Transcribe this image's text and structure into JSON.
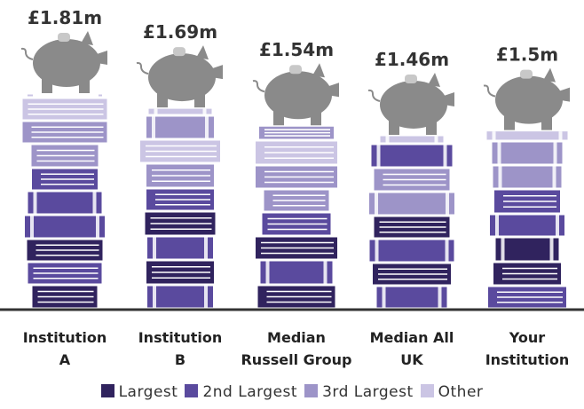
{
  "chart_data": {
    "type": "bar",
    "categories": [
      "Institution\nA",
      "Institution\nB",
      "Median\nRussell Group",
      "Median All\nUK",
      "Your\nInstitution"
    ],
    "values": [
      1.81,
      1.69,
      1.54,
      1.46,
      1.5
    ],
    "value_labels": [
      "£1.81m",
      "£1.69m",
      "£1.54m",
      "£1.46m",
      "£1.5m"
    ],
    "legend_items": [
      {
        "name": "Largest",
        "color": "#30235e"
      },
      {
        "name": "2nd Largest",
        "color": "#5a4a9e"
      },
      {
        "name": "3rd Largest",
        "color": "#9d94c8"
      },
      {
        "name": "Other",
        "color": "#cbc5e4"
      }
    ]
  }
}
